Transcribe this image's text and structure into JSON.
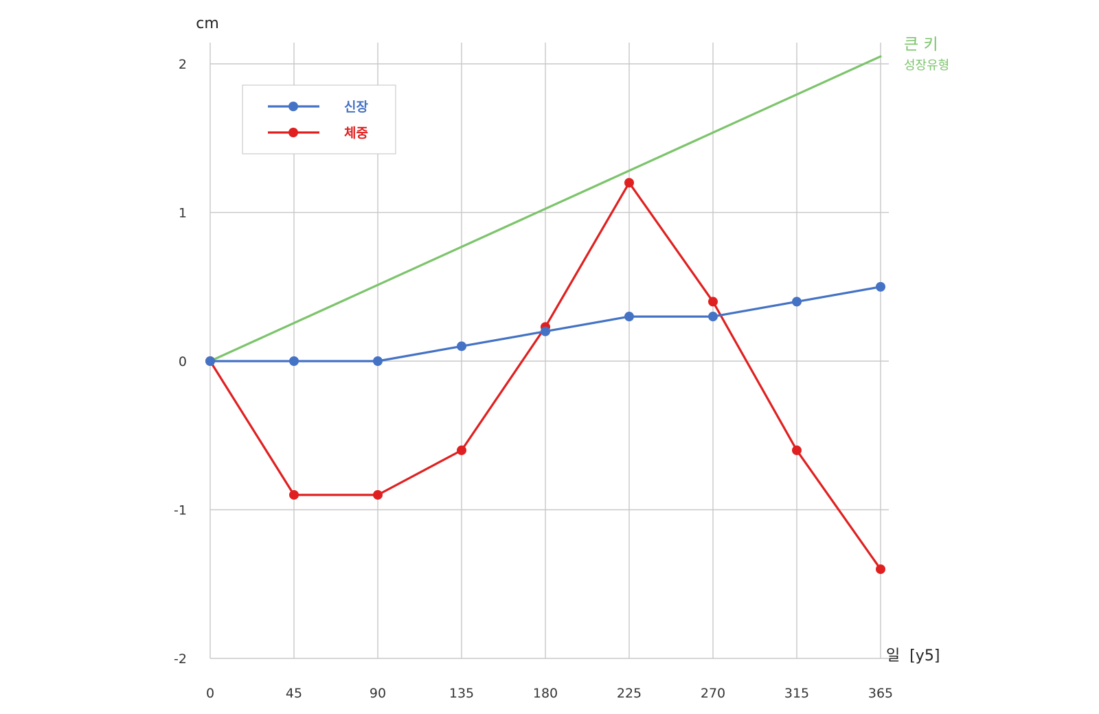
{
  "chart_data": {
    "type": "line",
    "y_unit": "cm",
    "x_unit": "일  [y5]",
    "x_ticks": [
      0,
      45,
      90,
      135,
      180,
      225,
      270,
      315,
      365
    ],
    "y_ticks": [
      2,
      1,
      0,
      -1,
      -2
    ],
    "xlim": [
      0,
      365
    ],
    "ylim": [
      -2,
      2
    ],
    "grid": true,
    "legend_position": "top-left",
    "series": [
      {
        "name": "신장",
        "color": "#4472c4",
        "marker": "circle",
        "x": [
          0,
          45,
          90,
          135,
          180,
          225,
          270,
          315,
          365
        ],
        "values": [
          0,
          0,
          0,
          0.1,
          0.2,
          0.3,
          0.3,
          0.4,
          0.5
        ]
      },
      {
        "name": "체중",
        "color": "#e02020",
        "marker": "circle",
        "x": [
          0,
          45,
          90,
          135,
          180,
          225,
          270,
          315,
          365
        ],
        "values": [
          0,
          -0.9,
          -0.9,
          -0.6,
          0.23,
          1.2,
          0.4,
          -0.6,
          -1.4
        ]
      }
    ],
    "reference_line": {
      "label_line1": "큰 키",
      "label_line2": "성장유형",
      "color": "#7cc46b",
      "x": [
        0,
        365
      ],
      "values": [
        0,
        2.05
      ]
    }
  }
}
